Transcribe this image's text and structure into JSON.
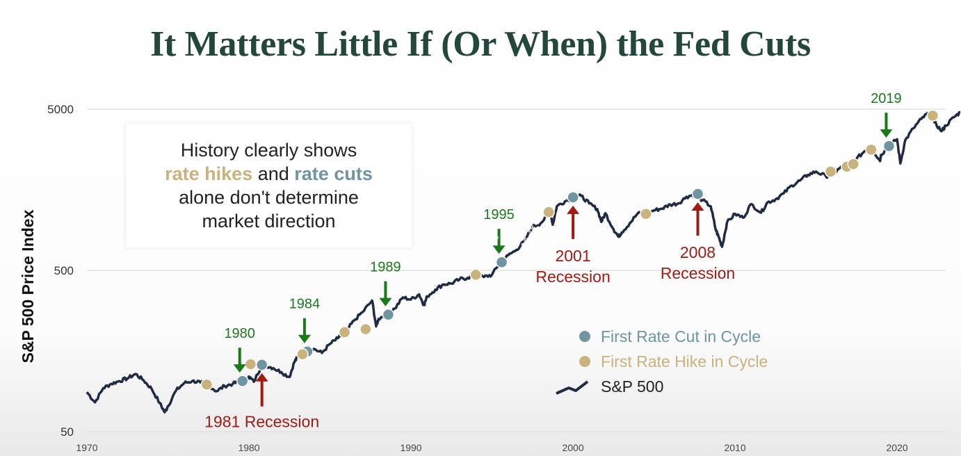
{
  "title": "It Matters Little If (Or When) the Fed Cuts",
  "callout": {
    "line1": "History clearly shows",
    "hikes_word": "rate hikes",
    "and_word": " and ",
    "cuts_word": "rate cuts",
    "line3": "alone don't determine",
    "line4": "market direction"
  },
  "watermark": "公众号 · 刘教链",
  "colors": {
    "line": "#1f2a44",
    "cut": "#6e95a1",
    "hike": "#c9b27c",
    "green_arrow": "#1a7a1a",
    "red_arrow": "#a11b14",
    "grid": "#e2e2e2"
  },
  "chart_data": {
    "type": "line",
    "ylabel": "S&P 500 Price Index",
    "yscale": "log",
    "ylim": [
      50,
      5000
    ],
    "xlim": [
      1970,
      2023
    ],
    "y_ticks": [
      {
        "value": 5000,
        "label": "5000"
      },
      {
        "value": 500,
        "label": "500"
      },
      {
        "value": 50,
        "label": "50"
      }
    ],
    "x_ticks": [
      {
        "value": 1970,
        "label": "1970"
      },
      {
        "value": 1980,
        "label": "1980"
      },
      {
        "value": 1990,
        "label": "1990"
      },
      {
        "value": 2000,
        "label": "2000"
      },
      {
        "value": 2010,
        "label": "2010"
      },
      {
        "value": 2020,
        "label": "2020"
      }
    ],
    "grid": "horizontal",
    "series": [
      {
        "name": "S&P 500",
        "points": [
          [
            1970.0,
            88
          ],
          [
            1970.5,
            76
          ],
          [
            1971.0,
            93
          ],
          [
            1971.5,
            99
          ],
          [
            1972.0,
            103
          ],
          [
            1972.5,
            107
          ],
          [
            1973.0,
            114
          ],
          [
            1973.5,
            104
          ],
          [
            1974.0,
            92
          ],
          [
            1974.5,
            75
          ],
          [
            1974.8,
            66
          ],
          [
            1975.0,
            72
          ],
          [
            1975.5,
            90
          ],
          [
            1976.0,
            100
          ],
          [
            1976.5,
            103
          ],
          [
            1977.0,
            101
          ],
          [
            1977.5,
            97
          ],
          [
            1978.0,
            89
          ],
          [
            1978.5,
            96
          ],
          [
            1979.0,
            99
          ],
          [
            1979.5,
            103
          ],
          [
            1980.0,
            110
          ],
          [
            1980.3,
            102
          ],
          [
            1980.8,
            130
          ],
          [
            1981.0,
            129
          ],
          [
            1981.5,
            124
          ],
          [
            1982.0,
            117
          ],
          [
            1982.5,
            109
          ],
          [
            1982.8,
            135
          ],
          [
            1983.0,
            145
          ],
          [
            1983.5,
            165
          ],
          [
            1984.0,
            163
          ],
          [
            1984.5,
            154
          ],
          [
            1985.0,
            175
          ],
          [
            1985.5,
            190
          ],
          [
            1986.0,
            210
          ],
          [
            1986.5,
            245
          ],
          [
            1987.0,
            275
          ],
          [
            1987.6,
            325
          ],
          [
            1987.85,
            225
          ],
          [
            1988.0,
            250
          ],
          [
            1988.5,
            270
          ],
          [
            1989.0,
            290
          ],
          [
            1989.5,
            340
          ],
          [
            1990.0,
            330
          ],
          [
            1990.5,
            355
          ],
          [
            1990.8,
            305
          ],
          [
            1991.0,
            345
          ],
          [
            1991.5,
            380
          ],
          [
            1992.0,
            410
          ],
          [
            1992.5,
            415
          ],
          [
            1993.0,
            440
          ],
          [
            1993.5,
            450
          ],
          [
            1994.0,
            470
          ],
          [
            1994.5,
            455
          ],
          [
            1995.0,
            470
          ],
          [
            1995.5,
            560
          ],
          [
            1996.0,
            620
          ],
          [
            1996.5,
            670
          ],
          [
            1997.0,
            760
          ],
          [
            1997.5,
            930
          ],
          [
            1998.0,
            980
          ],
          [
            1998.6,
            1150
          ],
          [
            1998.75,
            960
          ],
          [
            1999.0,
            1250
          ],
          [
            1999.5,
            1340
          ],
          [
            2000.0,
            1420
          ],
          [
            2000.5,
            1450
          ],
          [
            2001.0,
            1300
          ],
          [
            2001.5,
            1200
          ],
          [
            2001.75,
            1000
          ],
          [
            2002.0,
            1130
          ],
          [
            2002.5,
            900
          ],
          [
            2002.8,
            810
          ],
          [
            2003.0,
            860
          ],
          [
            2003.5,
            980
          ],
          [
            2004.0,
            1130
          ],
          [
            2004.5,
            1120
          ],
          [
            2005.0,
            1180
          ],
          [
            2005.5,
            1210
          ],
          [
            2006.0,
            1280
          ],
          [
            2006.5,
            1300
          ],
          [
            2007.0,
            1430
          ],
          [
            2007.5,
            1480
          ],
          [
            2008.0,
            1360
          ],
          [
            2008.5,
            1250
          ],
          [
            2008.8,
            900
          ],
          [
            2009.0,
            800
          ],
          [
            2009.2,
            700
          ],
          [
            2009.5,
            990
          ],
          [
            2010.0,
            1120
          ],
          [
            2010.5,
            1060
          ],
          [
            2011.0,
            1290
          ],
          [
            2011.6,
            1140
          ],
          [
            2012.0,
            1320
          ],
          [
            2012.5,
            1380
          ],
          [
            2013.0,
            1500
          ],
          [
            2013.5,
            1680
          ],
          [
            2014.0,
            1800
          ],
          [
            2014.5,
            1960
          ],
          [
            2015.0,
            2050
          ],
          [
            2015.6,
            1920
          ],
          [
            2016.0,
            1950
          ],
          [
            2016.5,
            2170
          ],
          [
            2017.0,
            2280
          ],
          [
            2017.5,
            2460
          ],
          [
            2018.0,
            2750
          ],
          [
            2018.5,
            2800
          ],
          [
            2018.95,
            2380
          ],
          [
            2019.0,
            2600
          ],
          [
            2019.5,
            2950
          ],
          [
            2020.0,
            3250
          ],
          [
            2020.2,
            2300
          ],
          [
            2020.5,
            3200
          ],
          [
            2021.0,
            3800
          ],
          [
            2021.5,
            4350
          ],
          [
            2021.95,
            4750
          ],
          [
            2022.3,
            4150
          ],
          [
            2022.75,
            3650
          ],
          [
            2023.0,
            3950
          ],
          [
            2023.5,
            4450
          ],
          [
            2023.9,
            4780
          ]
        ]
      },
      {
        "name": "First Rate Cut in Cycle",
        "marker": "cut",
        "points": [
          [
            1979.6,
            103
          ],
          [
            1980.8,
            130
          ],
          [
            1983.6,
            157
          ],
          [
            1988.6,
            266
          ],
          [
            1995.6,
            562
          ],
          [
            2000.0,
            1420
          ],
          [
            2007.7,
            1490
          ],
          [
            2019.5,
            2950
          ]
        ]
      },
      {
        "name": "First Rate Hike in Cycle",
        "marker": "hike",
        "points": [
          [
            1977.4,
            98
          ],
          [
            1980.1,
            131
          ],
          [
            1983.3,
            151
          ],
          [
            1985.9,
            207
          ],
          [
            1987.2,
            216
          ],
          [
            1994.0,
            470
          ],
          [
            1998.5,
            1150
          ],
          [
            2004.5,
            1120
          ],
          [
            2015.9,
            2050
          ],
          [
            2016.9,
            2200
          ],
          [
            2017.3,
            2280
          ],
          [
            2018.4,
            2800
          ],
          [
            2022.2,
            4560
          ]
        ]
      }
    ],
    "annotations": [
      {
        "label": "1980",
        "kind": "year",
        "x": 1979.6,
        "y": 103
      },
      {
        "label": "1984",
        "kind": "year",
        "x": 1983.6,
        "y": 157
      },
      {
        "label": "1989",
        "kind": "year",
        "x": 1988.6,
        "y": 266
      },
      {
        "label": "1995",
        "kind": "year",
        "x": 1995.6,
        "y": 562
      },
      {
        "label": "2019",
        "kind": "year",
        "x": 2019.5,
        "y": 2950
      },
      {
        "label": "1981 Recession",
        "kind": "recession",
        "x": 1980.8,
        "y": 130
      },
      {
        "label": "2001",
        "label2": "Recession",
        "kind": "recession",
        "x": 2000.0,
        "y": 1420
      },
      {
        "label": "2008",
        "label2": "Recession",
        "kind": "recession",
        "x": 2007.7,
        "y": 1490
      }
    ],
    "legend": {
      "placement": "bottom-right",
      "entries": [
        {
          "label": "First Rate Cut in Cycle",
          "kind": "cut"
        },
        {
          "label": "First Rate Hike in Cycle",
          "kind": "hike"
        },
        {
          "label": "S&P 500",
          "kind": "line"
        }
      ]
    }
  }
}
